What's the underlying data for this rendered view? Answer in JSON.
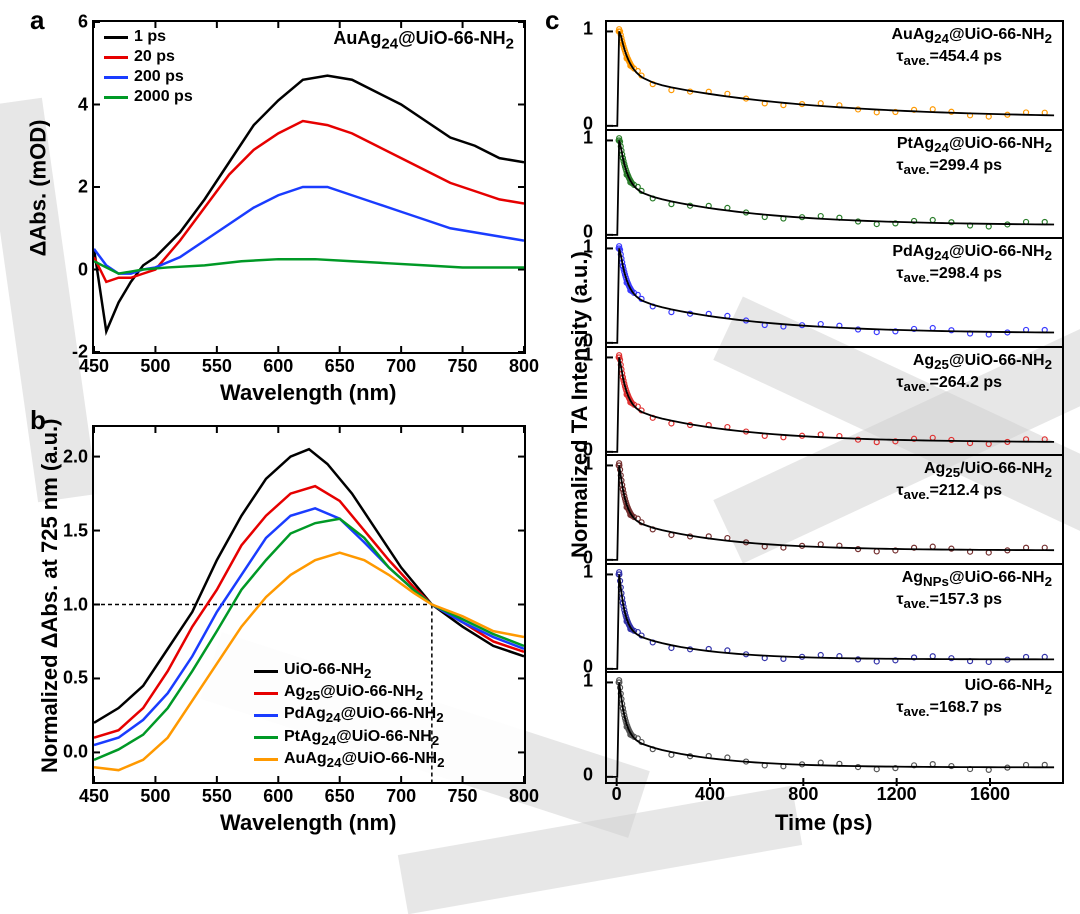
{
  "panelA": {
    "label": "a",
    "title": "AuAg₂₄@UiO-66-NH₂",
    "xlabel": "Wavelength (nm)",
    "ylabel": "ΔAbs. (mOD)",
    "xlim": [
      450,
      800
    ],
    "ylim": [
      -2,
      6
    ],
    "xticks": [
      450,
      500,
      550,
      600,
      650,
      700,
      750,
      800
    ],
    "yticks": [
      -2,
      0,
      2,
      4,
      6
    ],
    "legend": [
      {
        "label": "1 ps",
        "color": "#000000"
      },
      {
        "label": "20 ps",
        "color": "#e60000"
      },
      {
        "label": "200 ps",
        "color": "#1a3cff"
      },
      {
        "label": "2000 ps",
        "color": "#009926"
      }
    ],
    "series": {
      "s1": {
        "color": "#000000",
        "pts": [
          [
            450,
            0.5
          ],
          [
            460,
            -1.5
          ],
          [
            470,
            -0.8
          ],
          [
            480,
            -0.3
          ],
          [
            490,
            0.1
          ],
          [
            500,
            0.3
          ],
          [
            520,
            0.9
          ],
          [
            540,
            1.7
          ],
          [
            560,
            2.6
          ],
          [
            580,
            3.5
          ],
          [
            600,
            4.1
          ],
          [
            620,
            4.6
          ],
          [
            640,
            4.7
          ],
          [
            660,
            4.6
          ],
          [
            680,
            4.3
          ],
          [
            700,
            4.0
          ],
          [
            720,
            3.6
          ],
          [
            740,
            3.2
          ],
          [
            760,
            3.0
          ],
          [
            780,
            2.7
          ],
          [
            800,
            2.6
          ]
        ]
      },
      "s20": {
        "color": "#e60000",
        "pts": [
          [
            450,
            0.3
          ],
          [
            460,
            -0.3
          ],
          [
            470,
            -0.2
          ],
          [
            480,
            -0.2
          ],
          [
            490,
            -0.1
          ],
          [
            500,
            0.0
          ],
          [
            520,
            0.7
          ],
          [
            540,
            1.5
          ],
          [
            560,
            2.3
          ],
          [
            580,
            2.9
          ],
          [
            600,
            3.3
          ],
          [
            620,
            3.6
          ],
          [
            640,
            3.5
          ],
          [
            660,
            3.3
          ],
          [
            680,
            3.0
          ],
          [
            700,
            2.7
          ],
          [
            720,
            2.4
          ],
          [
            740,
            2.1
          ],
          [
            760,
            1.9
          ],
          [
            780,
            1.7
          ],
          [
            800,
            1.6
          ]
        ]
      },
      "s200": {
        "color": "#1a3cff",
        "pts": [
          [
            450,
            0.5
          ],
          [
            460,
            0.1
          ],
          [
            470,
            -0.1
          ],
          [
            480,
            -0.1
          ],
          [
            490,
            0.0
          ],
          [
            500,
            0.05
          ],
          [
            520,
            0.3
          ],
          [
            540,
            0.7
          ],
          [
            560,
            1.1
          ],
          [
            580,
            1.5
          ],
          [
            600,
            1.8
          ],
          [
            620,
            2.0
          ],
          [
            640,
            2.0
          ],
          [
            660,
            1.8
          ],
          [
            680,
            1.6
          ],
          [
            700,
            1.4
          ],
          [
            720,
            1.2
          ],
          [
            740,
            1.0
          ],
          [
            760,
            0.9
          ],
          [
            780,
            0.8
          ],
          [
            800,
            0.7
          ]
        ]
      },
      "s2000": {
        "color": "#009926",
        "pts": [
          [
            450,
            0.2
          ],
          [
            470,
            -0.1
          ],
          [
            490,
            0.0
          ],
          [
            510,
            0.05
          ],
          [
            540,
            0.1
          ],
          [
            570,
            0.2
          ],
          [
            600,
            0.25
          ],
          [
            630,
            0.25
          ],
          [
            660,
            0.2
          ],
          [
            690,
            0.15
          ],
          [
            720,
            0.1
          ],
          [
            750,
            0.05
          ],
          [
            780,
            0.05
          ],
          [
            800,
            0.05
          ]
        ]
      }
    }
  },
  "panelB": {
    "label": "b",
    "xlabel": "Wavelength (nm)",
    "ylabel": "Normalized ΔAbs. at 725 nm (a.u.)",
    "xlim": [
      450,
      800
    ],
    "ylim": [
      -0.2,
      2.2
    ],
    "xticks": [
      450,
      500,
      550,
      600,
      650,
      700,
      750,
      800
    ],
    "yticks": [
      0.0,
      0.5,
      1.0,
      1.5,
      2.0
    ],
    "dashX": 725,
    "dashY": 1.0,
    "legend": [
      {
        "label": "UiO-66-NH₂",
        "color": "#000000"
      },
      {
        "label": "Ag₂₅@UiO-66-NH₂",
        "color": "#e60000"
      },
      {
        "label": "PdAg₂₄@UiO-66-NH₂",
        "color": "#1a3cff"
      },
      {
        "label": "PtAg₂₄@UiO-66-NH₂",
        "color": "#009926"
      },
      {
        "label": "AuAg₂₄@UiO-66-NH₂",
        "color": "#ff9900"
      }
    ],
    "series": {
      "uio": {
        "color": "#000000",
        "pts": [
          [
            450,
            0.2
          ],
          [
            470,
            0.3
          ],
          [
            490,
            0.45
          ],
          [
            510,
            0.7
          ],
          [
            530,
            0.95
          ],
          [
            550,
            1.3
          ],
          [
            570,
            1.6
          ],
          [
            590,
            1.85
          ],
          [
            610,
            2.0
          ],
          [
            625,
            2.05
          ],
          [
            640,
            1.95
          ],
          [
            660,
            1.75
          ],
          [
            680,
            1.5
          ],
          [
            700,
            1.25
          ],
          [
            725,
            1.0
          ],
          [
            750,
            0.85
          ],
          [
            775,
            0.72
          ],
          [
            800,
            0.65
          ]
        ]
      },
      "ag": {
        "color": "#e60000",
        "pts": [
          [
            450,
            0.1
          ],
          [
            470,
            0.15
          ],
          [
            490,
            0.3
          ],
          [
            510,
            0.55
          ],
          [
            530,
            0.85
          ],
          [
            550,
            1.1
          ],
          [
            570,
            1.4
          ],
          [
            590,
            1.6
          ],
          [
            610,
            1.75
          ],
          [
            630,
            1.8
          ],
          [
            650,
            1.7
          ],
          [
            670,
            1.5
          ],
          [
            690,
            1.3
          ],
          [
            710,
            1.12
          ],
          [
            725,
            1.0
          ],
          [
            750,
            0.88
          ],
          [
            775,
            0.75
          ],
          [
            800,
            0.68
          ]
        ]
      },
      "pd": {
        "color": "#1a3cff",
        "pts": [
          [
            450,
            0.05
          ],
          [
            470,
            0.1
          ],
          [
            490,
            0.22
          ],
          [
            510,
            0.4
          ],
          [
            530,
            0.65
          ],
          [
            550,
            0.95
          ],
          [
            570,
            1.2
          ],
          [
            590,
            1.45
          ],
          [
            610,
            1.6
          ],
          [
            630,
            1.65
          ],
          [
            650,
            1.58
          ],
          [
            670,
            1.42
          ],
          [
            690,
            1.25
          ],
          [
            710,
            1.1
          ],
          [
            725,
            1.0
          ],
          [
            750,
            0.88
          ],
          [
            775,
            0.78
          ],
          [
            800,
            0.7
          ]
        ]
      },
      "pt": {
        "color": "#009926",
        "pts": [
          [
            450,
            -0.05
          ],
          [
            470,
            0.02
          ],
          [
            490,
            0.12
          ],
          [
            510,
            0.3
          ],
          [
            530,
            0.55
          ],
          [
            550,
            0.82
          ],
          [
            570,
            1.1
          ],
          [
            590,
            1.3
          ],
          [
            610,
            1.48
          ],
          [
            630,
            1.55
          ],
          [
            650,
            1.58
          ],
          [
            670,
            1.45
          ],
          [
            690,
            1.25
          ],
          [
            710,
            1.1
          ],
          [
            725,
            1.0
          ],
          [
            750,
            0.9
          ],
          [
            775,
            0.8
          ],
          [
            800,
            0.72
          ]
        ]
      },
      "au": {
        "color": "#ff9900",
        "pts": [
          [
            450,
            -0.1
          ],
          [
            470,
            -0.12
          ],
          [
            490,
            -0.05
          ],
          [
            510,
            0.1
          ],
          [
            530,
            0.35
          ],
          [
            550,
            0.6
          ],
          [
            570,
            0.85
          ],
          [
            590,
            1.05
          ],
          [
            610,
            1.2
          ],
          [
            630,
            1.3
          ],
          [
            650,
            1.35
          ],
          [
            670,
            1.3
          ],
          [
            690,
            1.2
          ],
          [
            710,
            1.08
          ],
          [
            725,
            1.0
          ],
          [
            750,
            0.92
          ],
          [
            775,
            0.82
          ],
          [
            800,
            0.78
          ]
        ]
      }
    }
  },
  "panelC": {
    "label": "c",
    "xlabel": "Time (ps)",
    "ylabel": "Normalized TA Intensity (a.u.)",
    "xlim": [
      -50,
      1900
    ],
    "xticks": [
      0,
      400,
      800,
      1200,
      1600
    ],
    "yticks": [
      0,
      1
    ],
    "panels": [
      {
        "name": "AuAg₂₄@UiO-66-NH₂",
        "tau": "τ_ave.=454.4 ps",
        "color": "#ff9900"
      },
      {
        "name": "PtAg₂₄@UiO-66-NH₂",
        "tau": "τ_ave.=299.4 ps",
        "color": "#2a7d2a"
      },
      {
        "name": "PdAg₂₄@UiO-66-NH₂",
        "tau": "τ_ave.=298.4 ps",
        "color": "#3a3aff"
      },
      {
        "name": "Ag₂₅@UiO-66-NH₂",
        "tau": "τ_ave.=264.2 ps",
        "color": "#e03030"
      },
      {
        "name": "Ag₂₅/UiO-66-NH₂",
        "tau": "τ_ave.=212.4 ps",
        "color": "#753030"
      },
      {
        "name": "Ag_NPs@UiO-66-NH₂",
        "tau": "τ_ave.=157.3 ps",
        "color": "#3333aa"
      },
      {
        "name": "UiO-66-NH₂",
        "tau": "τ_ave.=168.7 ps",
        "color": "#555555"
      }
    ]
  },
  "colors": {
    "axis": "#000000",
    "bg": "#ffffff",
    "watermark": "#d0d0d0"
  }
}
